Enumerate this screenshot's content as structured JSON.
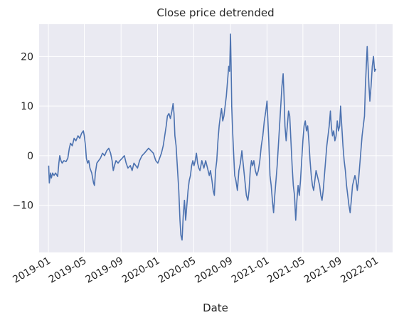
{
  "chart_data": {
    "type": "line",
    "title": "Close price detrended",
    "xlabel": "Date",
    "ylabel": "",
    "grid": true,
    "background_color": "#EAEAF2",
    "line_color": "#4C72B0",
    "xlim": [
      "2018-12-01",
      "2022-02-25"
    ],
    "ylim": [
      -19.5,
      26.5
    ],
    "x_ticks": [
      "2019-01",
      "2019-05",
      "2019-09",
      "2020-01",
      "2020-05",
      "2020-09",
      "2021-01",
      "2021-05",
      "2021-09",
      "2022-01"
    ],
    "y_ticks": [
      -10,
      0,
      10,
      20
    ],
    "series": [
      {
        "points": [
          [
            "2019-01-02",
            -2
          ],
          [
            "2019-01-04",
            -5.5
          ],
          [
            "2019-01-08",
            -3.5
          ],
          [
            "2019-01-11",
            -4.5
          ],
          [
            "2019-01-15",
            -3.5
          ],
          [
            "2019-01-20",
            -4
          ],
          [
            "2019-01-25",
            -3.5
          ],
          [
            "2019-02-01",
            -4.2
          ],
          [
            "2019-02-05",
            -1.5
          ],
          [
            "2019-02-08",
            0
          ],
          [
            "2019-02-12",
            -1
          ],
          [
            "2019-02-16",
            -1.5
          ],
          [
            "2019-02-22",
            -1
          ],
          [
            "2019-03-01",
            -1.2
          ],
          [
            "2019-03-07",
            -0.5
          ],
          [
            "2019-03-12",
            1.5
          ],
          [
            "2019-03-16",
            2.5
          ],
          [
            "2019-03-22",
            2
          ],
          [
            "2019-03-28",
            3.5
          ],
          [
            "2019-04-03",
            3
          ],
          [
            "2019-04-10",
            4
          ],
          [
            "2019-04-16",
            3.5
          ],
          [
            "2019-04-22",
            4.5
          ],
          [
            "2019-04-28",
            5
          ],
          [
            "2019-05-01",
            4
          ],
          [
            "2019-05-05",
            2
          ],
          [
            "2019-05-08",
            -0.5
          ],
          [
            "2019-05-12",
            -1.5
          ],
          [
            "2019-05-16",
            -1
          ],
          [
            "2019-05-20",
            -2.5
          ],
          [
            "2019-05-26",
            -3.5
          ],
          [
            "2019-06-01",
            -5.5
          ],
          [
            "2019-06-04",
            -6
          ],
          [
            "2019-06-07",
            -3.5
          ],
          [
            "2019-06-12",
            -1.5
          ],
          [
            "2019-06-18",
            -1
          ],
          [
            "2019-06-24",
            -0.5
          ],
          [
            "2019-07-01",
            0.5
          ],
          [
            "2019-07-08",
            0
          ],
          [
            "2019-07-15",
            1
          ],
          [
            "2019-07-22",
            1.5
          ],
          [
            "2019-07-28",
            0.5
          ],
          [
            "2019-08-02",
            -1
          ],
          [
            "2019-08-06",
            -3
          ],
          [
            "2019-08-10",
            -2
          ],
          [
            "2019-08-15",
            -1
          ],
          [
            "2019-08-22",
            -1.5
          ],
          [
            "2019-08-28",
            -1
          ],
          [
            "2019-09-05",
            -0.5
          ],
          [
            "2019-09-12",
            0
          ],
          [
            "2019-09-18",
            -1.5
          ],
          [
            "2019-09-24",
            -2.5
          ],
          [
            "2019-10-02",
            -2
          ],
          [
            "2019-10-08",
            -3
          ],
          [
            "2019-10-14",
            -1.5
          ],
          [
            "2019-10-20",
            -2
          ],
          [
            "2019-10-26",
            -2.5
          ],
          [
            "2019-11-02",
            -1
          ],
          [
            "2019-11-10",
            0
          ],
          [
            "2019-11-18",
            0.5
          ],
          [
            "2019-11-25",
            1
          ],
          [
            "2019-12-02",
            1.5
          ],
          [
            "2019-12-10",
            1
          ],
          [
            "2019-12-18",
            0.5
          ],
          [
            "2019-12-26",
            -1
          ],
          [
            "2020-01-02",
            -1.5
          ],
          [
            "2020-01-08",
            -0.5
          ],
          [
            "2020-01-14",
            0.5
          ],
          [
            "2020-01-20",
            2
          ],
          [
            "2020-01-25",
            4
          ],
          [
            "2020-01-30",
            6
          ],
          [
            "2020-02-03",
            8
          ],
          [
            "2020-02-08",
            8.5
          ],
          [
            "2020-02-13",
            7.5
          ],
          [
            "2020-02-18",
            9
          ],
          [
            "2020-02-22",
            10.5
          ],
          [
            "2020-02-25",
            8.5
          ],
          [
            "2020-02-28",
            4
          ],
          [
            "2020-03-03",
            2
          ],
          [
            "2020-03-06",
            -1
          ],
          [
            "2020-03-09",
            -4
          ],
          [
            "2020-03-12",
            -7
          ],
          [
            "2020-03-16",
            -13
          ],
          [
            "2020-03-19",
            -16
          ],
          [
            "2020-03-23",
            -17
          ],
          [
            "2020-03-27",
            -12
          ],
          [
            "2020-03-31",
            -9
          ],
          [
            "2020-04-04",
            -13
          ],
          [
            "2020-04-08",
            -10
          ],
          [
            "2020-04-12",
            -7
          ],
          [
            "2020-04-16",
            -5
          ],
          [
            "2020-04-20",
            -4
          ],
          [
            "2020-04-24",
            -2
          ],
          [
            "2020-04-28",
            -1
          ],
          [
            "2020-05-02",
            -2
          ],
          [
            "2020-05-06",
            -1
          ],
          [
            "2020-05-10",
            0.5
          ],
          [
            "2020-05-14",
            -1.5
          ],
          [
            "2020-05-18",
            -2.5
          ],
          [
            "2020-05-22",
            -3
          ],
          [
            "2020-05-28",
            -1
          ],
          [
            "2020-06-04",
            -2.5
          ],
          [
            "2020-06-10",
            -1
          ],
          [
            "2020-06-16",
            -2.5
          ],
          [
            "2020-06-22",
            -4
          ],
          [
            "2020-06-26",
            -3
          ],
          [
            "2020-07-01",
            -5
          ],
          [
            "2020-07-05",
            -7
          ],
          [
            "2020-07-09",
            -8
          ],
          [
            "2020-07-13",
            -3
          ],
          [
            "2020-07-17",
            -1
          ],
          [
            "2020-07-21",
            3
          ],
          [
            "2020-07-25",
            6
          ],
          [
            "2020-07-29",
            8
          ],
          [
            "2020-08-02",
            9.5
          ],
          [
            "2020-08-06",
            7
          ],
          [
            "2020-08-10",
            8
          ],
          [
            "2020-08-14",
            10
          ],
          [
            "2020-08-18",
            12
          ],
          [
            "2020-08-22",
            15
          ],
          [
            "2020-08-26",
            18
          ],
          [
            "2020-08-29",
            17
          ],
          [
            "2020-09-01",
            24.5
          ],
          [
            "2020-09-03",
            18
          ],
          [
            "2020-09-05",
            10
          ],
          [
            "2020-09-08",
            5
          ],
          [
            "2020-09-11",
            1
          ],
          [
            "2020-09-15",
            -4
          ],
          [
            "2020-09-19",
            -5
          ],
          [
            "2020-09-24",
            -7
          ],
          [
            "2020-09-29",
            -3
          ],
          [
            "2020-10-04",
            -1.5
          ],
          [
            "2020-10-09",
            1
          ],
          [
            "2020-10-14",
            -2
          ],
          [
            "2020-10-19",
            -5
          ],
          [
            "2020-10-24",
            -8
          ],
          [
            "2020-10-29",
            -9
          ],
          [
            "2020-11-02",
            -7
          ],
          [
            "2020-11-06",
            -3
          ],
          [
            "2020-11-10",
            -1
          ],
          [
            "2020-11-14",
            -2
          ],
          [
            "2020-11-18",
            -1
          ],
          [
            "2020-11-23",
            -3
          ],
          [
            "2020-11-28",
            -4
          ],
          [
            "2020-12-03",
            -3
          ],
          [
            "2020-12-08",
            -1
          ],
          [
            "2020-12-13",
            2
          ],
          [
            "2020-12-18",
            4
          ],
          [
            "2020-12-23",
            7
          ],
          [
            "2020-12-28",
            9
          ],
          [
            "2021-01-01",
            11
          ],
          [
            "2021-01-04",
            7
          ],
          [
            "2021-01-07",
            3
          ],
          [
            "2021-01-11",
            -4
          ],
          [
            "2021-01-15",
            -6
          ],
          [
            "2021-01-19",
            -9
          ],
          [
            "2021-01-23",
            -11.5
          ],
          [
            "2021-01-27",
            -8
          ],
          [
            "2021-01-31",
            -5
          ],
          [
            "2021-02-04",
            -2
          ],
          [
            "2021-02-08",
            2
          ],
          [
            "2021-02-12",
            6
          ],
          [
            "2021-02-16",
            10
          ],
          [
            "2021-02-20",
            14
          ],
          [
            "2021-02-24",
            16.5
          ],
          [
            "2021-02-27",
            12
          ],
          [
            "2021-03-02",
            6
          ],
          [
            "2021-03-06",
            3
          ],
          [
            "2021-03-10",
            6
          ],
          [
            "2021-03-14",
            9
          ],
          [
            "2021-03-18",
            8
          ],
          [
            "2021-03-22",
            3
          ],
          [
            "2021-03-26",
            -2
          ],
          [
            "2021-03-30",
            -6
          ],
          [
            "2021-04-03",
            -8
          ],
          [
            "2021-04-07",
            -13
          ],
          [
            "2021-04-11",
            -9
          ],
          [
            "2021-04-15",
            -6
          ],
          [
            "2021-04-19",
            -8
          ],
          [
            "2021-04-23",
            -5
          ],
          [
            "2021-04-27",
            -1
          ],
          [
            "2021-05-01",
            3
          ],
          [
            "2021-05-05",
            6
          ],
          [
            "2021-05-09",
            7
          ],
          [
            "2021-05-13",
            5
          ],
          [
            "2021-05-17",
            6
          ],
          [
            "2021-05-21",
            3
          ],
          [
            "2021-05-25",
            -1
          ],
          [
            "2021-05-29",
            -4
          ],
          [
            "2021-06-02",
            -6
          ],
          [
            "2021-06-06",
            -7
          ],
          [
            "2021-06-10",
            -5
          ],
          [
            "2021-06-14",
            -3
          ],
          [
            "2021-06-18",
            -4
          ],
          [
            "2021-06-22",
            -5
          ],
          [
            "2021-06-26",
            -6
          ],
          [
            "2021-06-30",
            -8
          ],
          [
            "2021-07-04",
            -9
          ],
          [
            "2021-07-08",
            -7
          ],
          [
            "2021-07-12",
            -4
          ],
          [
            "2021-07-16",
            -1
          ],
          [
            "2021-07-20",
            2
          ],
          [
            "2021-07-24",
            4
          ],
          [
            "2021-07-28",
            6
          ],
          [
            "2021-08-01",
            9
          ],
          [
            "2021-08-04",
            6
          ],
          [
            "2021-08-08",
            4
          ],
          [
            "2021-08-12",
            5
          ],
          [
            "2021-08-16",
            3
          ],
          [
            "2021-08-20",
            4
          ],
          [
            "2021-08-24",
            7
          ],
          [
            "2021-08-28",
            5
          ],
          [
            "2021-09-01",
            6
          ],
          [
            "2021-09-04",
            10
          ],
          [
            "2021-09-08",
            6
          ],
          [
            "2021-09-12",
            2
          ],
          [
            "2021-09-16",
            -1
          ],
          [
            "2021-09-20",
            -3
          ],
          [
            "2021-09-24",
            -6
          ],
          [
            "2021-09-28",
            -8
          ],
          [
            "2021-10-02",
            -10
          ],
          [
            "2021-10-06",
            -11.5
          ],
          [
            "2021-10-10",
            -9
          ],
          [
            "2021-10-14",
            -6
          ],
          [
            "2021-10-18",
            -5
          ],
          [
            "2021-10-22",
            -4
          ],
          [
            "2021-10-26",
            -5
          ],
          [
            "2021-10-30",
            -7
          ],
          [
            "2021-11-03",
            -5
          ],
          [
            "2021-11-07",
            -2
          ],
          [
            "2021-11-11",
            1
          ],
          [
            "2021-11-15",
            4
          ],
          [
            "2021-11-19",
            6
          ],
          [
            "2021-11-23",
            8
          ],
          [
            "2021-11-26",
            14
          ],
          [
            "2021-11-29",
            18
          ],
          [
            "2021-12-02",
            22
          ],
          [
            "2021-12-05",
            18
          ],
          [
            "2021-12-08",
            14
          ],
          [
            "2021-12-11",
            11
          ],
          [
            "2021-12-15",
            14
          ],
          [
            "2021-12-19",
            18
          ],
          [
            "2021-12-23",
            20
          ],
          [
            "2021-12-27",
            17
          ],
          [
            "2021-12-31",
            17.5
          ]
        ]
      }
    ]
  }
}
